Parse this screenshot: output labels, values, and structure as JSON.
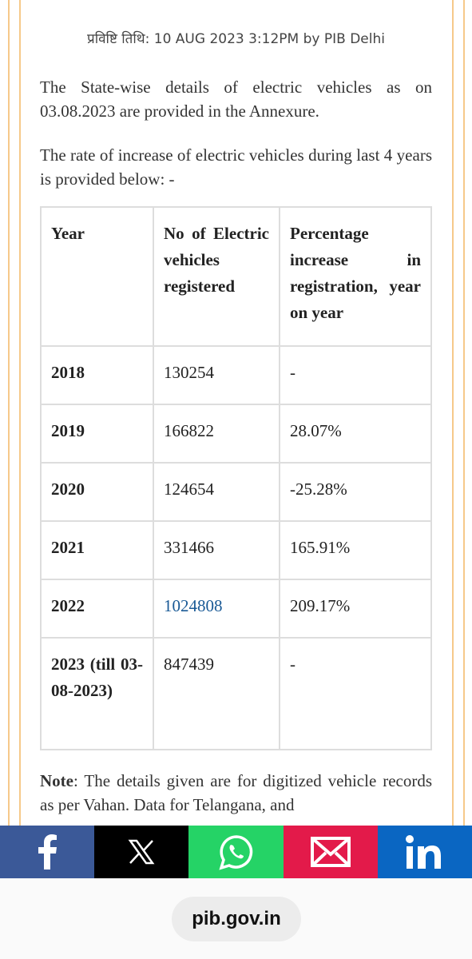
{
  "header": {
    "date_line": "प्रविष्टि तिथि: 10 AUG 2023 3:12PM by PIB Delhi"
  },
  "paragraphs": [
    "The State-wise details of electric vehicles as on 03.08.2023 are provided in the Annexure.",
    "The rate of increase of electric vehicles during last 4 years is provided below: -"
  ],
  "table": {
    "columns": [
      "Year",
      "No of Electric vehicles registered",
      "Percentage increase in registration, year on year"
    ],
    "rows": [
      [
        "2018",
        "130254",
        "-"
      ],
      [
        "2019",
        "166822",
        "28.07%"
      ],
      [
        "2020",
        "124654",
        "-25.28%"
      ],
      [
        "2021",
        "331466",
        "165.91%"
      ],
      [
        "2022",
        "1024808",
        "209.17%"
      ],
      [
        "2023 (till 03-08-2023)",
        "847439",
        "-"
      ]
    ]
  },
  "note": {
    "label": "Note",
    "text": ": The details given are for digitized vehicle records as per Vahan. Data for Telangana, and"
  },
  "address_bar": {
    "url": "pib.gov.in"
  }
}
